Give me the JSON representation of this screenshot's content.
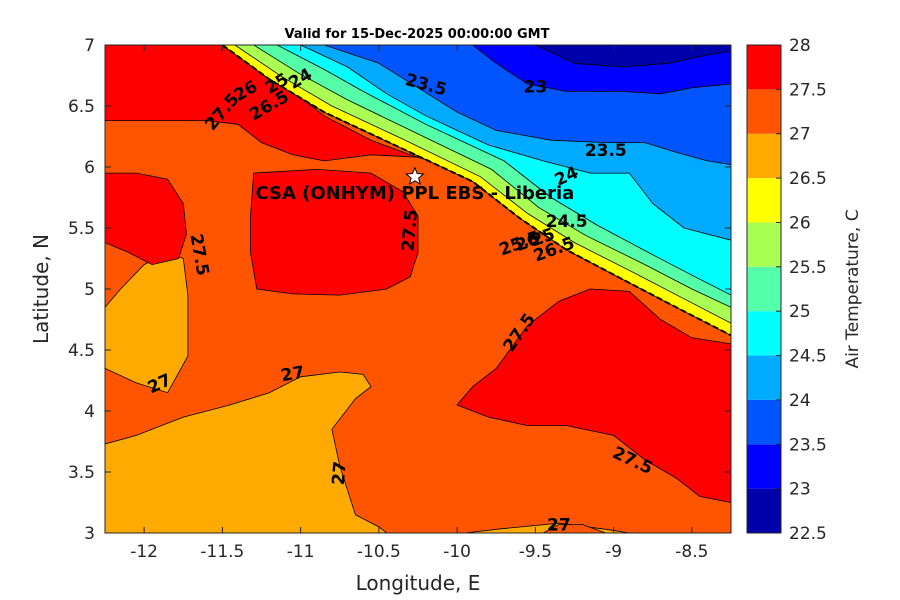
{
  "chart_data": {
    "type": "heatmap",
    "title": "Valid for 15-Dec-2025 00:00:00 GMT",
    "xlabel": "Longitude, E",
    "ylabel": "Latitude, N",
    "xlim": [
      -12.25,
      -8.25
    ],
    "ylim": [
      3,
      7
    ],
    "x_ticks": [
      -12,
      -11.5,
      -11,
      -10.5,
      -10,
      -9.5,
      -9,
      -8.5
    ],
    "x_tick_labels": [
      "-12",
      "-11.5",
      "-11",
      "-10.5",
      "-10",
      "-9.5",
      "-9",
      "-8.5"
    ],
    "y_ticks": [
      3,
      3.5,
      4,
      4.5,
      5,
      5.5,
      6,
      6.5,
      7
    ],
    "y_tick_labels": [
      "3",
      "3.5",
      "4",
      "4.5",
      "5",
      "5.5",
      "6",
      "6.5",
      "7"
    ],
    "colorbar": {
      "label": "Air Temperature, C",
      "levels": [
        22.5,
        23,
        23.5,
        24,
        24.5,
        25,
        25.5,
        26,
        26.5,
        27,
        27.5,
        28
      ],
      "tick_labels": [
        "22.5",
        "23",
        "23.5",
        "24",
        "24.5",
        "25",
        "25.5",
        "26",
        "26.5",
        "27",
        "27.5",
        "28"
      ],
      "colors": [
        "#0000aa",
        "#0000ff",
        "#0055ff",
        "#00aaff",
        "#00ffff",
        "#55ffaa",
        "#aaff55",
        "#ffff00",
        "#ffaa00",
        "#ff5500",
        "#ff0000",
        "#aa0000"
      ]
    },
    "site": {
      "name": "CSA (ONHYM) PPL EBS  - Liberia",
      "lon": -10.27,
      "lat": 5.92
    },
    "contour_labels": [
      {
        "text": "23.5",
        "lon": -10.2,
        "lat": 6.67,
        "angle": 15
      },
      {
        "text": "23",
        "lon": -9.5,
        "lat": 6.65,
        "angle": 0
      },
      {
        "text": "23.5",
        "lon": -9.05,
        "lat": 6.13,
        "angle": 0
      },
      {
        "text": "24",
        "lon": -9.3,
        "lat": 5.92,
        "angle": -25
      },
      {
        "text": "24.5",
        "lon": -9.3,
        "lat": 5.55,
        "angle": 0
      },
      {
        "text": "25",
        "lon": -9.45,
        "lat": 5.42,
        "angle": -20
      },
      {
        "text": "25.5",
        "lon": -9.6,
        "lat": 5.37,
        "angle": -20
      },
      {
        "text": "26.5",
        "lon": -9.38,
        "lat": 5.32,
        "angle": -20
      },
      {
        "text": "26",
        "lon": -9.55,
        "lat": 5.38,
        "angle": -20
      },
      {
        "text": "24",
        "lon": -11.0,
        "lat": 6.72,
        "angle": -30
      },
      {
        "text": "25",
        "lon": -11.15,
        "lat": 6.68,
        "angle": -30
      },
      {
        "text": "26",
        "lon": -11.35,
        "lat": 6.62,
        "angle": -30
      },
      {
        "text": "26.5",
        "lon": -11.2,
        "lat": 6.5,
        "angle": -30
      },
      {
        "text": "27.5",
        "lon": -11.5,
        "lat": 6.45,
        "angle": -50
      },
      {
        "text": "27.5",
        "lon": -10.3,
        "lat": 5.48,
        "angle": -85
      },
      {
        "text": "27.5",
        "lon": -11.65,
        "lat": 5.28,
        "angle": 80
      },
      {
        "text": "27",
        "lon": -11.9,
        "lat": 4.22,
        "angle": -25
      },
      {
        "text": "27",
        "lon": -11.05,
        "lat": 4.3,
        "angle": -10
      },
      {
        "text": "27.5",
        "lon": -9.6,
        "lat": 4.64,
        "angle": -55
      },
      {
        "text": "27",
        "lon": -10.75,
        "lat": 3.49,
        "angle": -85
      },
      {
        "text": "27.5",
        "lon": -8.88,
        "lat": 3.59,
        "angle": 25
      },
      {
        "text": "27",
        "lon": -9.35,
        "lat": 3.06,
        "angle": 0
      }
    ],
    "regions": [
      {
        "level": 26.5,
        "polygon": [
          [
            -12.25,
            3
          ],
          [
            -8.25,
            3
          ],
          [
            -8.25,
            7
          ],
          [
            -12.25,
            7
          ]
        ]
      },
      {
        "level": 27,
        "polygon": [
          [
            -12.25,
            4.35
          ],
          [
            -12.05,
            4.23
          ],
          [
            -11.85,
            4.15
          ],
          [
            -11.72,
            4.45
          ],
          [
            -11.72,
            4.95
          ],
          [
            -11.75,
            5.25
          ],
          [
            -11.85,
            5.3
          ],
          [
            -12.0,
            5.2
          ],
          [
            -12.15,
            5.0
          ],
          [
            -12.25,
            4.85
          ],
          [
            -12.25,
            7
          ],
          [
            -8.25,
            7
          ],
          [
            -8.25,
            3
          ],
          [
            -8.55,
            3
          ],
          [
            -8.9,
            3.0
          ],
          [
            -9.05,
            3.03
          ],
          [
            -9.35,
            3.08
          ],
          [
            -9.75,
            3.03
          ],
          [
            -9.95,
            3.0
          ],
          [
            -10.45,
            3.0
          ],
          [
            -10.5,
            3.05
          ],
          [
            -10.65,
            3.15
          ],
          [
            -10.75,
            3.55
          ],
          [
            -10.8,
            3.85
          ],
          [
            -10.65,
            4.1
          ],
          [
            -10.55,
            4.2
          ],
          [
            -10.6,
            4.3
          ],
          [
            -10.75,
            4.32
          ],
          [
            -11.0,
            4.28
          ],
          [
            -11.2,
            4.15
          ],
          [
            -11.45,
            4.05
          ],
          [
            -11.75,
            3.95
          ],
          [
            -12.05,
            3.8
          ],
          [
            -12.25,
            3.73
          ]
        ]
      },
      {
        "level": 27.5,
        "polygon": [
          [
            -12.25,
            7
          ],
          [
            -11.35,
            7
          ],
          [
            -11.25,
            6.78
          ],
          [
            -11.05,
            6.62
          ],
          [
            -10.85,
            6.42
          ],
          [
            -10.55,
            6.22
          ],
          [
            -10.3,
            6.1
          ],
          [
            -10.1,
            6.02
          ],
          [
            -10.25,
            6.08
          ],
          [
            -10.55,
            6.1
          ],
          [
            -10.85,
            6.05
          ],
          [
            -11.05,
            6.1
          ],
          [
            -11.25,
            6.2
          ],
          [
            -11.4,
            6.35
          ],
          [
            -11.6,
            6.38
          ],
          [
            -11.85,
            6.38
          ],
          [
            -12.1,
            6.38
          ],
          [
            -12.25,
            6.38
          ]
        ]
      },
      {
        "level": 27.5,
        "polygon": [
          [
            -12.25,
            5.95
          ],
          [
            -12.05,
            5.95
          ],
          [
            -11.85,
            5.9
          ],
          [
            -11.75,
            5.7
          ],
          [
            -11.73,
            5.45
          ],
          [
            -11.78,
            5.25
          ],
          [
            -11.95,
            5.2
          ],
          [
            -12.1,
            5.3
          ],
          [
            -12.25,
            5.38
          ]
        ]
      },
      {
        "level": 27.5,
        "polygon": [
          [
            -11.3,
            5.95
          ],
          [
            -10.9,
            5.98
          ],
          [
            -10.55,
            5.95
          ],
          [
            -10.35,
            5.8
          ],
          [
            -10.25,
            5.6
          ],
          [
            -10.25,
            5.3
          ],
          [
            -10.3,
            5.1
          ],
          [
            -10.45,
            5.0
          ],
          [
            -10.75,
            4.95
          ],
          [
            -11.05,
            4.96
          ],
          [
            -11.28,
            5.0
          ],
          [
            -11.32,
            5.3
          ],
          [
            -11.32,
            5.6
          ]
        ]
      },
      {
        "level": 27.5,
        "polygon": [
          [
            -10.0,
            4.05
          ],
          [
            -9.9,
            4.2
          ],
          [
            -9.75,
            4.35
          ],
          [
            -9.55,
            4.7
          ],
          [
            -9.35,
            4.9
          ],
          [
            -9.15,
            5.0
          ],
          [
            -8.9,
            4.98
          ],
          [
            -8.7,
            4.75
          ],
          [
            -8.5,
            4.6
          ],
          [
            -8.25,
            4.55
          ],
          [
            -8.25,
            3.25
          ],
          [
            -8.45,
            3.3
          ],
          [
            -8.6,
            3.45
          ],
          [
            -8.8,
            3.6
          ],
          [
            -9.0,
            3.8
          ],
          [
            -9.3,
            3.88
          ],
          [
            -9.55,
            3.88
          ],
          [
            -9.8,
            3.95
          ]
        ]
      },
      {
        "level": 27,
        "polygon": [
          [
            -9.45,
            3.0
          ],
          [
            -9.35,
            3.07
          ],
          [
            -9.2,
            3.07
          ],
          [
            -9.05,
            3.0
          ]
        ]
      },
      {
        "level": 26,
        "polygon": [
          [
            -11.5,
            7
          ],
          [
            -11.2,
            6.72
          ],
          [
            -10.85,
            6.45
          ],
          [
            -10.4,
            6.18
          ],
          [
            -9.9,
            5.88
          ],
          [
            -9.6,
            5.58
          ],
          [
            -9.3,
            5.32
          ],
          [
            -8.9,
            5.05
          ],
          [
            -8.6,
            4.85
          ],
          [
            -8.25,
            4.62
          ],
          [
            -8.25,
            7
          ]
        ]
      },
      {
        "level": 25.5,
        "polygon": [
          [
            -11.42,
            7
          ],
          [
            -11.12,
            6.74
          ],
          [
            -10.8,
            6.5
          ],
          [
            -10.35,
            6.23
          ],
          [
            -9.85,
            5.92
          ],
          [
            -9.55,
            5.62
          ],
          [
            -9.25,
            5.38
          ],
          [
            -8.85,
            5.12
          ],
          [
            -8.55,
            4.92
          ],
          [
            -8.25,
            4.72
          ],
          [
            -8.25,
            7
          ]
        ]
      },
      {
        "level": 25,
        "polygon": [
          [
            -11.3,
            7
          ],
          [
            -11.0,
            6.76
          ],
          [
            -10.7,
            6.55
          ],
          [
            -10.28,
            6.29
          ],
          [
            -9.78,
            5.98
          ],
          [
            -9.48,
            5.67
          ],
          [
            -9.18,
            5.44
          ],
          [
            -8.8,
            5.2
          ],
          [
            -8.5,
            5.0
          ],
          [
            -8.25,
            4.85
          ],
          [
            -8.25,
            7
          ]
        ]
      },
      {
        "level": 24.5,
        "polygon": [
          [
            -11.15,
            7
          ],
          [
            -10.85,
            6.8
          ],
          [
            -10.6,
            6.62
          ],
          [
            -10.2,
            6.35
          ],
          [
            -9.7,
            6.05
          ],
          [
            -9.4,
            5.75
          ],
          [
            -9.1,
            5.52
          ],
          [
            -8.75,
            5.28
          ],
          [
            -8.45,
            5.08
          ],
          [
            -8.25,
            4.95
          ],
          [
            -8.25,
            7
          ]
        ]
      },
      {
        "level": 24,
        "polygon": [
          [
            -11.0,
            7
          ],
          [
            -10.7,
            6.82
          ],
          [
            -10.45,
            6.6
          ],
          [
            -10.2,
            6.42
          ],
          [
            -9.8,
            6.18
          ],
          [
            -9.45,
            6.05
          ],
          [
            -9.15,
            5.95
          ],
          [
            -8.9,
            5.95
          ],
          [
            -8.75,
            5.7
          ],
          [
            -8.55,
            5.5
          ],
          [
            -8.25,
            5.4
          ],
          [
            -8.25,
            7
          ]
        ]
      },
      {
        "level": 23.5,
        "polygon": [
          [
            -10.85,
            7
          ],
          [
            -10.5,
            6.85
          ],
          [
            -10.25,
            6.65
          ],
          [
            -10.0,
            6.45
          ],
          [
            -9.75,
            6.3
          ],
          [
            -9.4,
            6.22
          ],
          [
            -9.05,
            6.2
          ],
          [
            -8.8,
            6.2
          ],
          [
            -8.6,
            6.12
          ],
          [
            -8.4,
            6.05
          ],
          [
            -8.25,
            6.02
          ],
          [
            -8.25,
            7
          ]
        ]
      },
      {
        "level": 23,
        "polygon": [
          [
            -9.9,
            7
          ],
          [
            -9.75,
            6.85
          ],
          [
            -9.55,
            6.68
          ],
          [
            -9.3,
            6.62
          ],
          [
            -8.95,
            6.62
          ],
          [
            -8.7,
            6.6
          ],
          [
            -8.5,
            6.65
          ],
          [
            -8.25,
            6.68
          ],
          [
            -8.25,
            7
          ]
        ]
      },
      {
        "level": 22.5,
        "polygon": [
          [
            -9.5,
            7
          ],
          [
            -9.25,
            6.85
          ],
          [
            -8.95,
            6.82
          ],
          [
            -8.65,
            6.85
          ],
          [
            -8.4,
            6.92
          ],
          [
            -8.25,
            6.95
          ],
          [
            -8.25,
            7
          ]
        ]
      }
    ],
    "grid": false,
    "legend": "none"
  }
}
